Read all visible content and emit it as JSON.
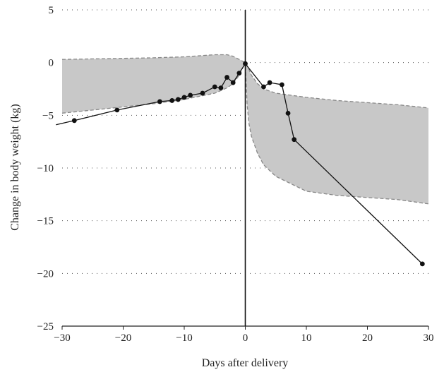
{
  "chart_data": {
    "type": "line",
    "title": "",
    "xlabel": "Days after delivery",
    "ylabel": "Change in body weight (kg)",
    "xlim": [
      -30,
      30
    ],
    "ylim": [
      -25,
      5
    ],
    "xticks": [
      -30,
      -20,
      -10,
      0,
      10,
      20,
      30
    ],
    "xtick_labels": [
      "−30",
      "−20",
      "−10",
      "0",
      "10",
      "20",
      "30"
    ],
    "yticks": [
      5,
      0,
      -5,
      -10,
      -15,
      -20,
      -25
    ],
    "ytick_labels": [
      "5",
      "0",
      "−5",
      "−10",
      "−15",
      "−20",
      "−25"
    ],
    "grid": "horizontal dotted",
    "band": {
      "upper_x": [
        -30,
        -25,
        -20,
        -15,
        -10,
        -5,
        -3,
        -2,
        -1,
        -0.5,
        0,
        0.5,
        1,
        2,
        3,
        5,
        10,
        15,
        20,
        25,
        30
      ],
      "upper_y": [
        0.3,
        0.35,
        0.4,
        0.45,
        0.55,
        0.75,
        0.75,
        0.6,
        0.3,
        0.15,
        0,
        -0.5,
        -1.2,
        -2.0,
        -2.5,
        -2.9,
        -3.3,
        -3.6,
        -3.8,
        -4.0,
        -4.3
      ],
      "lower_x": [
        -30,
        -25,
        -20,
        -15,
        -10,
        -5,
        -3,
        -2,
        -1,
        -0.5,
        0,
        0.3,
        0.6,
        1,
        2,
        3,
        5,
        10,
        15,
        20,
        25,
        30
      ],
      "lower_y": [
        -4.8,
        -4.5,
        -4.2,
        -3.9,
        -3.5,
        -2.9,
        -2.4,
        -2.0,
        -1.2,
        -0.6,
        0,
        -4.0,
        -5.8,
        -7.0,
        -8.6,
        -9.7,
        -10.8,
        -12.2,
        -12.6,
        -12.8,
        -13.0,
        -13.4
      ],
      "color": "#c8c8c8",
      "edge_color": "#888888"
    },
    "series": [
      {
        "x": [
          -31,
          -28,
          -21,
          -14,
          -12,
          -11,
          -10,
          -9,
          -7,
          -5,
          -4,
          -3,
          -2,
          -1,
          0,
          3,
          4,
          6,
          7,
          8,
          29
        ],
        "y": [
          -5.9,
          -5.5,
          -4.5,
          -3.7,
          -3.6,
          -3.5,
          -3.3,
          -3.1,
          -2.9,
          -2.3,
          -2.4,
          -1.4,
          -1.9,
          -1.0,
          -0.1,
          -2.3,
          -1.9,
          -2.1,
          -4.8,
          -7.3,
          -19.1
        ],
        "markers": [
          false,
          true,
          true,
          true,
          true,
          true,
          true,
          true,
          true,
          true,
          true,
          true,
          true,
          true,
          true,
          true,
          true,
          true,
          true,
          true,
          true
        ],
        "color": "#111111"
      }
    ]
  }
}
